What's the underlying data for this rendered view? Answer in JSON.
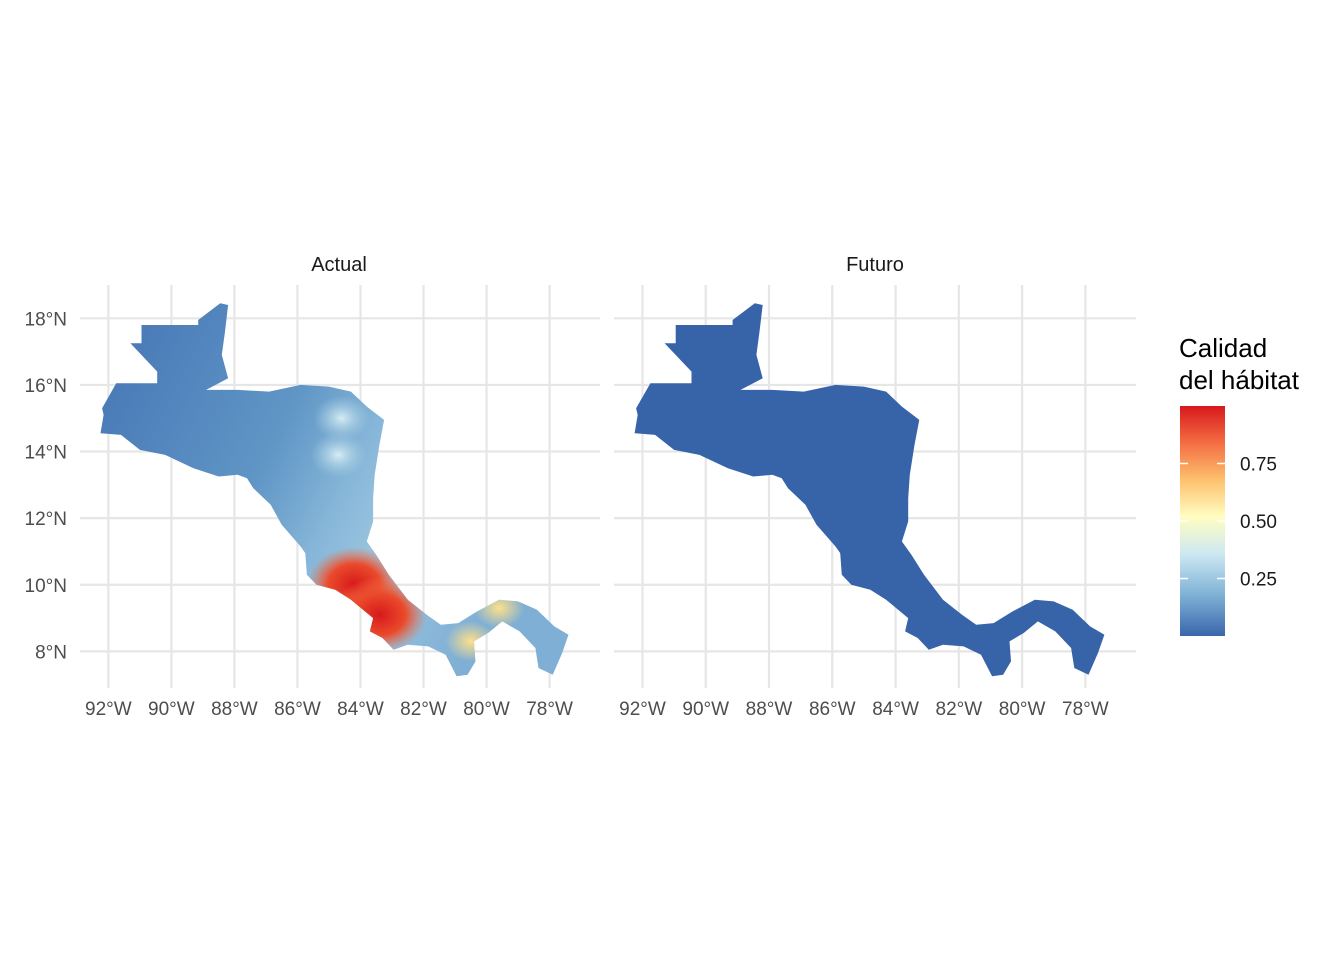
{
  "panels": [
    {
      "title": "Actual",
      "mode": "actual"
    },
    {
      "title": "Futuro",
      "mode": "future"
    }
  ],
  "axes": {
    "lon_ticks": [
      -92,
      -90,
      -88,
      -86,
      -84,
      -82,
      -80,
      -78
    ],
    "lon_labels": [
      "92°W",
      "90°W",
      "88°W",
      "86°W",
      "84°W",
      "82°W",
      "80°W",
      "78°W"
    ],
    "lat_ticks": [
      18,
      16,
      14,
      12,
      10,
      8
    ],
    "lat_labels": [
      "18°N",
      "16°N",
      "14°N",
      "12°N",
      "10°N",
      "8°N"
    ],
    "lon_range": [
      -92.9,
      -76.4
    ],
    "lat_range": [
      6.9,
      19.0
    ]
  },
  "legend": {
    "title_line1": "Calidad",
    "title_line2": "del hábitat",
    "ticks": [
      0.25,
      0.5,
      0.75
    ],
    "tick_labels": [
      "0.25",
      "0.50",
      "0.75"
    ],
    "range": [
      0.0,
      1.0
    ],
    "palette": [
      "#3a66ac",
      "#7fb2d6",
      "#cfe9f2",
      "#fffdc0",
      "#fdc06d",
      "#f46d43",
      "#d7191c"
    ]
  },
  "chart_data": {
    "type": "heatmap",
    "title": "",
    "facets": [
      "Actual",
      "Futuro"
    ],
    "variable": "Calidad del hábitat",
    "value_range": [
      0,
      1
    ],
    "future_uniform_value": 0.0,
    "actual_hotspots": [
      {
        "lon": -84.2,
        "lat": 10.0,
        "value": 0.95
      },
      {
        "lon": -83.4,
        "lat": 9.1,
        "value": 0.9
      },
      {
        "lon": -79.6,
        "lat": 9.3,
        "value": 0.65
      },
      {
        "lon": -84.7,
        "lat": 13.9,
        "value": 0.45
      },
      {
        "lon": -84.6,
        "lat": 15.0,
        "value": 0.3
      },
      {
        "lon": -80.5,
        "lat": 8.3,
        "value": 0.5
      }
    ]
  },
  "colors": {
    "future_fill": "#3763a8",
    "grid": "#e6e6e6"
  }
}
